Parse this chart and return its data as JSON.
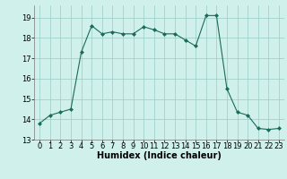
{
  "x": [
    0,
    1,
    2,
    3,
    4,
    5,
    6,
    7,
    8,
    9,
    10,
    11,
    12,
    13,
    14,
    15,
    16,
    17,
    18,
    19,
    20,
    21,
    22,
    23
  ],
  "y": [
    13.8,
    14.2,
    14.35,
    14.5,
    17.3,
    18.6,
    18.2,
    18.3,
    18.2,
    18.2,
    18.55,
    18.4,
    18.2,
    18.2,
    17.9,
    17.6,
    19.1,
    19.1,
    15.5,
    14.35,
    14.2,
    13.55,
    13.5,
    13.55
  ],
  "line_color": "#1a6b5a",
  "marker": "D",
  "marker_size": 2,
  "bg_color": "#cff0eb",
  "grid_color": "#99ccc6",
  "xlabel": "Humidex (Indice chaleur)",
  "xlim": [
    -0.5,
    23.5
  ],
  "ylim": [
    13,
    19.6
  ],
  "yticks": [
    13,
    14,
    15,
    16,
    17,
    18,
    19
  ],
  "xticks": [
    0,
    1,
    2,
    3,
    4,
    5,
    6,
    7,
    8,
    9,
    10,
    11,
    12,
    13,
    14,
    15,
    16,
    17,
    18,
    19,
    20,
    21,
    22,
    23
  ],
  "label_fontsize": 7,
  "tick_fontsize": 6
}
